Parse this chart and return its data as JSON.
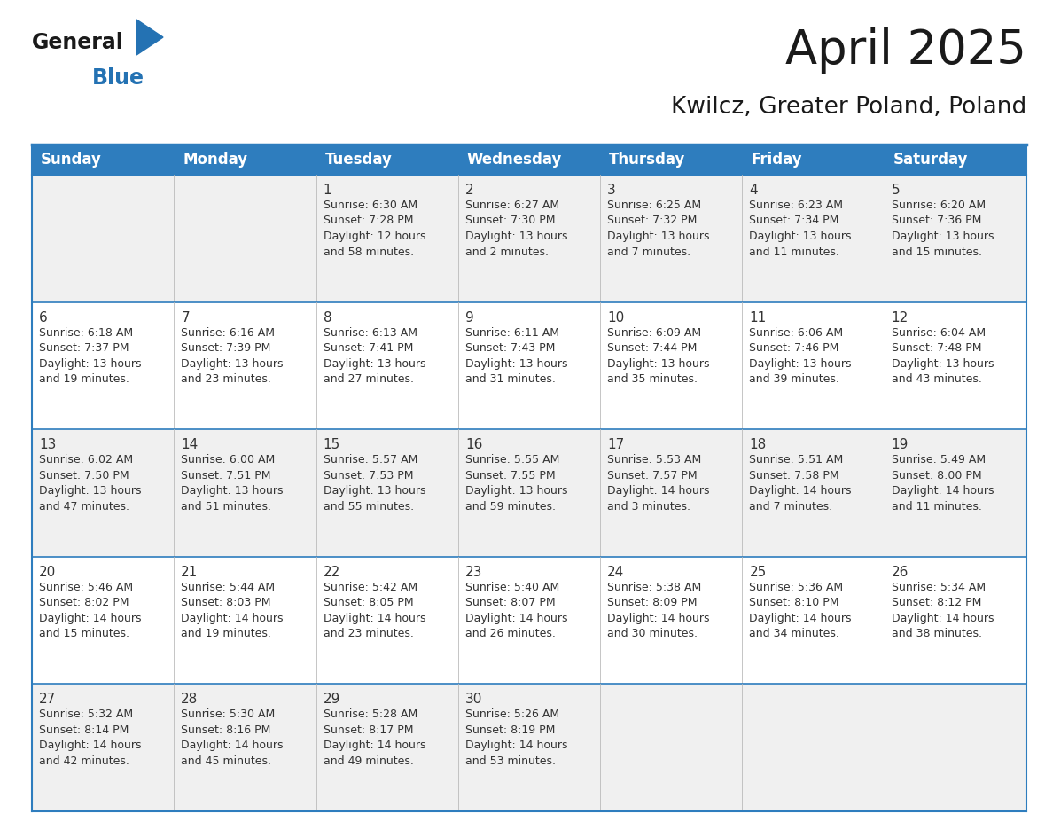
{
  "title": "April 2025",
  "subtitle": "Kwilcz, Greater Poland, Poland",
  "header_bg": "#2E7DBE",
  "header_text_color": "#FFFFFF",
  "cell_bg_odd_row": "#F0F0F0",
  "cell_bg_even_row": "#FFFFFF",
  "border_color": "#2E7DBE",
  "day_headers": [
    "Sunday",
    "Monday",
    "Tuesday",
    "Wednesday",
    "Thursday",
    "Friday",
    "Saturday"
  ],
  "weeks": [
    [
      {
        "day": "",
        "info": ""
      },
      {
        "day": "",
        "info": ""
      },
      {
        "day": "1",
        "info": "Sunrise: 6:30 AM\nSunset: 7:28 PM\nDaylight: 12 hours\nand 58 minutes."
      },
      {
        "day": "2",
        "info": "Sunrise: 6:27 AM\nSunset: 7:30 PM\nDaylight: 13 hours\nand 2 minutes."
      },
      {
        "day": "3",
        "info": "Sunrise: 6:25 AM\nSunset: 7:32 PM\nDaylight: 13 hours\nand 7 minutes."
      },
      {
        "day": "4",
        "info": "Sunrise: 6:23 AM\nSunset: 7:34 PM\nDaylight: 13 hours\nand 11 minutes."
      },
      {
        "day": "5",
        "info": "Sunrise: 6:20 AM\nSunset: 7:36 PM\nDaylight: 13 hours\nand 15 minutes."
      }
    ],
    [
      {
        "day": "6",
        "info": "Sunrise: 6:18 AM\nSunset: 7:37 PM\nDaylight: 13 hours\nand 19 minutes."
      },
      {
        "day": "7",
        "info": "Sunrise: 6:16 AM\nSunset: 7:39 PM\nDaylight: 13 hours\nand 23 minutes."
      },
      {
        "day": "8",
        "info": "Sunrise: 6:13 AM\nSunset: 7:41 PM\nDaylight: 13 hours\nand 27 minutes."
      },
      {
        "day": "9",
        "info": "Sunrise: 6:11 AM\nSunset: 7:43 PM\nDaylight: 13 hours\nand 31 minutes."
      },
      {
        "day": "10",
        "info": "Sunrise: 6:09 AM\nSunset: 7:44 PM\nDaylight: 13 hours\nand 35 minutes."
      },
      {
        "day": "11",
        "info": "Sunrise: 6:06 AM\nSunset: 7:46 PM\nDaylight: 13 hours\nand 39 minutes."
      },
      {
        "day": "12",
        "info": "Sunrise: 6:04 AM\nSunset: 7:48 PM\nDaylight: 13 hours\nand 43 minutes."
      }
    ],
    [
      {
        "day": "13",
        "info": "Sunrise: 6:02 AM\nSunset: 7:50 PM\nDaylight: 13 hours\nand 47 minutes."
      },
      {
        "day": "14",
        "info": "Sunrise: 6:00 AM\nSunset: 7:51 PM\nDaylight: 13 hours\nand 51 minutes."
      },
      {
        "day": "15",
        "info": "Sunrise: 5:57 AM\nSunset: 7:53 PM\nDaylight: 13 hours\nand 55 minutes."
      },
      {
        "day": "16",
        "info": "Sunrise: 5:55 AM\nSunset: 7:55 PM\nDaylight: 13 hours\nand 59 minutes."
      },
      {
        "day": "17",
        "info": "Sunrise: 5:53 AM\nSunset: 7:57 PM\nDaylight: 14 hours\nand 3 minutes."
      },
      {
        "day": "18",
        "info": "Sunrise: 5:51 AM\nSunset: 7:58 PM\nDaylight: 14 hours\nand 7 minutes."
      },
      {
        "day": "19",
        "info": "Sunrise: 5:49 AM\nSunset: 8:00 PM\nDaylight: 14 hours\nand 11 minutes."
      }
    ],
    [
      {
        "day": "20",
        "info": "Sunrise: 5:46 AM\nSunset: 8:02 PM\nDaylight: 14 hours\nand 15 minutes."
      },
      {
        "day": "21",
        "info": "Sunrise: 5:44 AM\nSunset: 8:03 PM\nDaylight: 14 hours\nand 19 minutes."
      },
      {
        "day": "22",
        "info": "Sunrise: 5:42 AM\nSunset: 8:05 PM\nDaylight: 14 hours\nand 23 minutes."
      },
      {
        "day": "23",
        "info": "Sunrise: 5:40 AM\nSunset: 8:07 PM\nDaylight: 14 hours\nand 26 minutes."
      },
      {
        "day": "24",
        "info": "Sunrise: 5:38 AM\nSunset: 8:09 PM\nDaylight: 14 hours\nand 30 minutes."
      },
      {
        "day": "25",
        "info": "Sunrise: 5:36 AM\nSunset: 8:10 PM\nDaylight: 14 hours\nand 34 minutes."
      },
      {
        "day": "26",
        "info": "Sunrise: 5:34 AM\nSunset: 8:12 PM\nDaylight: 14 hours\nand 38 minutes."
      }
    ],
    [
      {
        "day": "27",
        "info": "Sunrise: 5:32 AM\nSunset: 8:14 PM\nDaylight: 14 hours\nand 42 minutes."
      },
      {
        "day": "28",
        "info": "Sunrise: 5:30 AM\nSunset: 8:16 PM\nDaylight: 14 hours\nand 45 minutes."
      },
      {
        "day": "29",
        "info": "Sunrise: 5:28 AM\nSunset: 8:17 PM\nDaylight: 14 hours\nand 49 minutes."
      },
      {
        "day": "30",
        "info": "Sunrise: 5:26 AM\nSunset: 8:19 PM\nDaylight: 14 hours\nand 53 minutes."
      },
      {
        "day": "",
        "info": ""
      },
      {
        "day": "",
        "info": ""
      },
      {
        "day": "",
        "info": ""
      }
    ]
  ],
  "logo_general_color": "#1a1a1a",
  "logo_blue_color": "#2472B3",
  "title_fontsize": 38,
  "subtitle_fontsize": 19,
  "header_fontsize": 12,
  "day_num_fontsize": 11,
  "info_fontsize": 9
}
